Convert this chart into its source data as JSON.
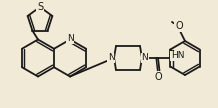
{
  "bg_color": "#f0ead6",
  "line_color": "#1a1a1a",
  "lw": 1.3,
  "fs": 6.5,
  "figsize": [
    2.18,
    1.08
  ],
  "dpi": 100,
  "xlim": [
    0,
    218
  ],
  "ylim": [
    0,
    108
  ]
}
